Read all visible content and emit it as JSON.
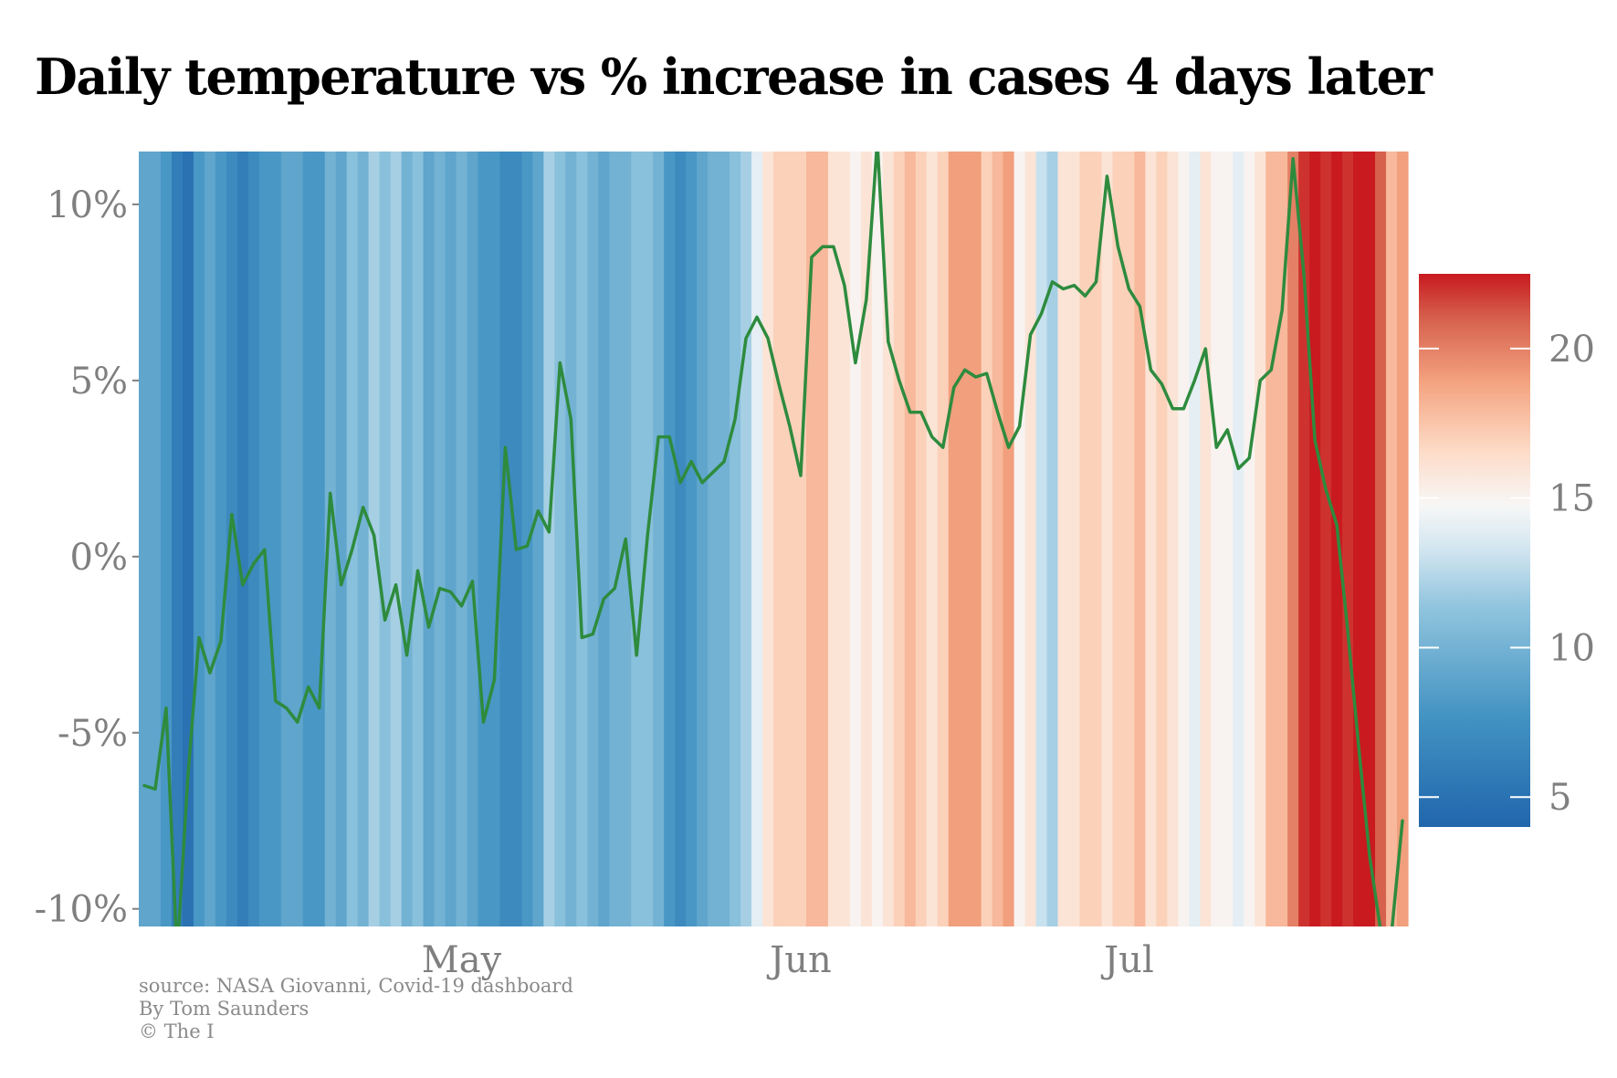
{
  "chart_data": {
    "type": "line",
    "title": "Daily temperature vs % increase in cases 4 days later",
    "xlabel": "",
    "ylabel": "",
    "ylim": [
      -10.5,
      11.5
    ],
    "y_ticks": [
      10,
      5,
      0,
      -5,
      -10
    ],
    "y_tick_labels": [
      "10%",
      "5%",
      "0%",
      "-5%",
      "-10%"
    ],
    "x_tick_labels": [
      {
        "label": "May",
        "day": 29
      },
      {
        "label": "Jun",
        "day": 60
      },
      {
        "label": "Jul",
        "day": 90
      }
    ],
    "grid": false,
    "legend": "colorbar right",
    "series": [
      {
        "name": "",
        "color": "#2e8b3e",
        "values": [
          -6.5,
          -6.6,
          -4.3,
          -11.3,
          -6.2,
          -2.3,
          -3.3,
          -2.4,
          1.2,
          -0.8,
          -0.2,
          0.2,
          -4.1,
          -4.3,
          -4.7,
          -3.7,
          -4.3,
          1.8,
          -0.8,
          0.2,
          1.4,
          0.6,
          -1.8,
          -0.8,
          -2.8,
          -0.4,
          -2.0,
          -0.9,
          -1.0,
          -1.4,
          -0.7,
          -4.7,
          -3.5,
          3.1,
          0.2,
          0.3,
          1.3,
          0.7,
          5.5,
          3.9,
          -2.3,
          -2.2,
          -1.2,
          -0.9,
          0.5,
          -2.8,
          0.6,
          3.4,
          3.4,
          2.1,
          2.7,
          2.1,
          2.4,
          2.7,
          3.9,
          6.2,
          6.8,
          6.2,
          4.9,
          3.7,
          2.3,
          8.5,
          8.8,
          8.8,
          7.7,
          5.5,
          7.3,
          11.8,
          6.1,
          5.0,
          4.1,
          4.1,
          3.4,
          3.1,
          4.8,
          5.3,
          5.1,
          5.2,
          4.1,
          3.1,
          3.7,
          6.3,
          6.9,
          7.8,
          7.6,
          7.7,
          7.4,
          7.8,
          10.8,
          8.8,
          7.6,
          7.1,
          5.3,
          4.9,
          4.2,
          4.2,
          5.0,
          5.9,
          3.1,
          3.6,
          2.5,
          2.8,
          5.0,
          5.3,
          7.0,
          11.3,
          8.0,
          3.3,
          1.9,
          0.9,
          -2.1,
          -5.4,
          -8.5,
          -10.6,
          -10.7,
          -7.5
        ]
      }
    ],
    "temperature_stripes": [
      9,
      9,
      8,
      6,
      5,
      8,
      9,
      8,
      7,
      6,
      7,
      8,
      8,
      9,
      9,
      8,
      8,
      10,
      9,
      11,
      10,
      12,
      11,
      12,
      10,
      11,
      9,
      10,
      9,
      10,
      9,
      8,
      8,
      7,
      7,
      8,
      9,
      12,
      11,
      10,
      11,
      10,
      9,
      10,
      10,
      11,
      11,
      10,
      8,
      7,
      8,
      9,
      10,
      10,
      11,
      12,
      14,
      16,
      17,
      17,
      17,
      18,
      18,
      16,
      16,
      15,
      16,
      15,
      16,
      17,
      18,
      17,
      16,
      17,
      19,
      19,
      19,
      17,
      18,
      19,
      15,
      16,
      13,
      12,
      16,
      16,
      17,
      17,
      16,
      17,
      17,
      18,
      16,
      17,
      16,
      15,
      14,
      16,
      15,
      15,
      14,
      15,
      16,
      18,
      18,
      20,
      22,
      23,
      22,
      23,
      22,
      23,
      23,
      21,
      18,
      19
    ],
    "colorbar": {
      "ticks": [
        20,
        15,
        10,
        5
      ],
      "range": [
        4,
        22.5
      ]
    }
  },
  "source_lines": [
    "source: NASA Giovanni, Covid-19 dashboard",
    "By Tom Saunders",
    "© The I"
  ]
}
